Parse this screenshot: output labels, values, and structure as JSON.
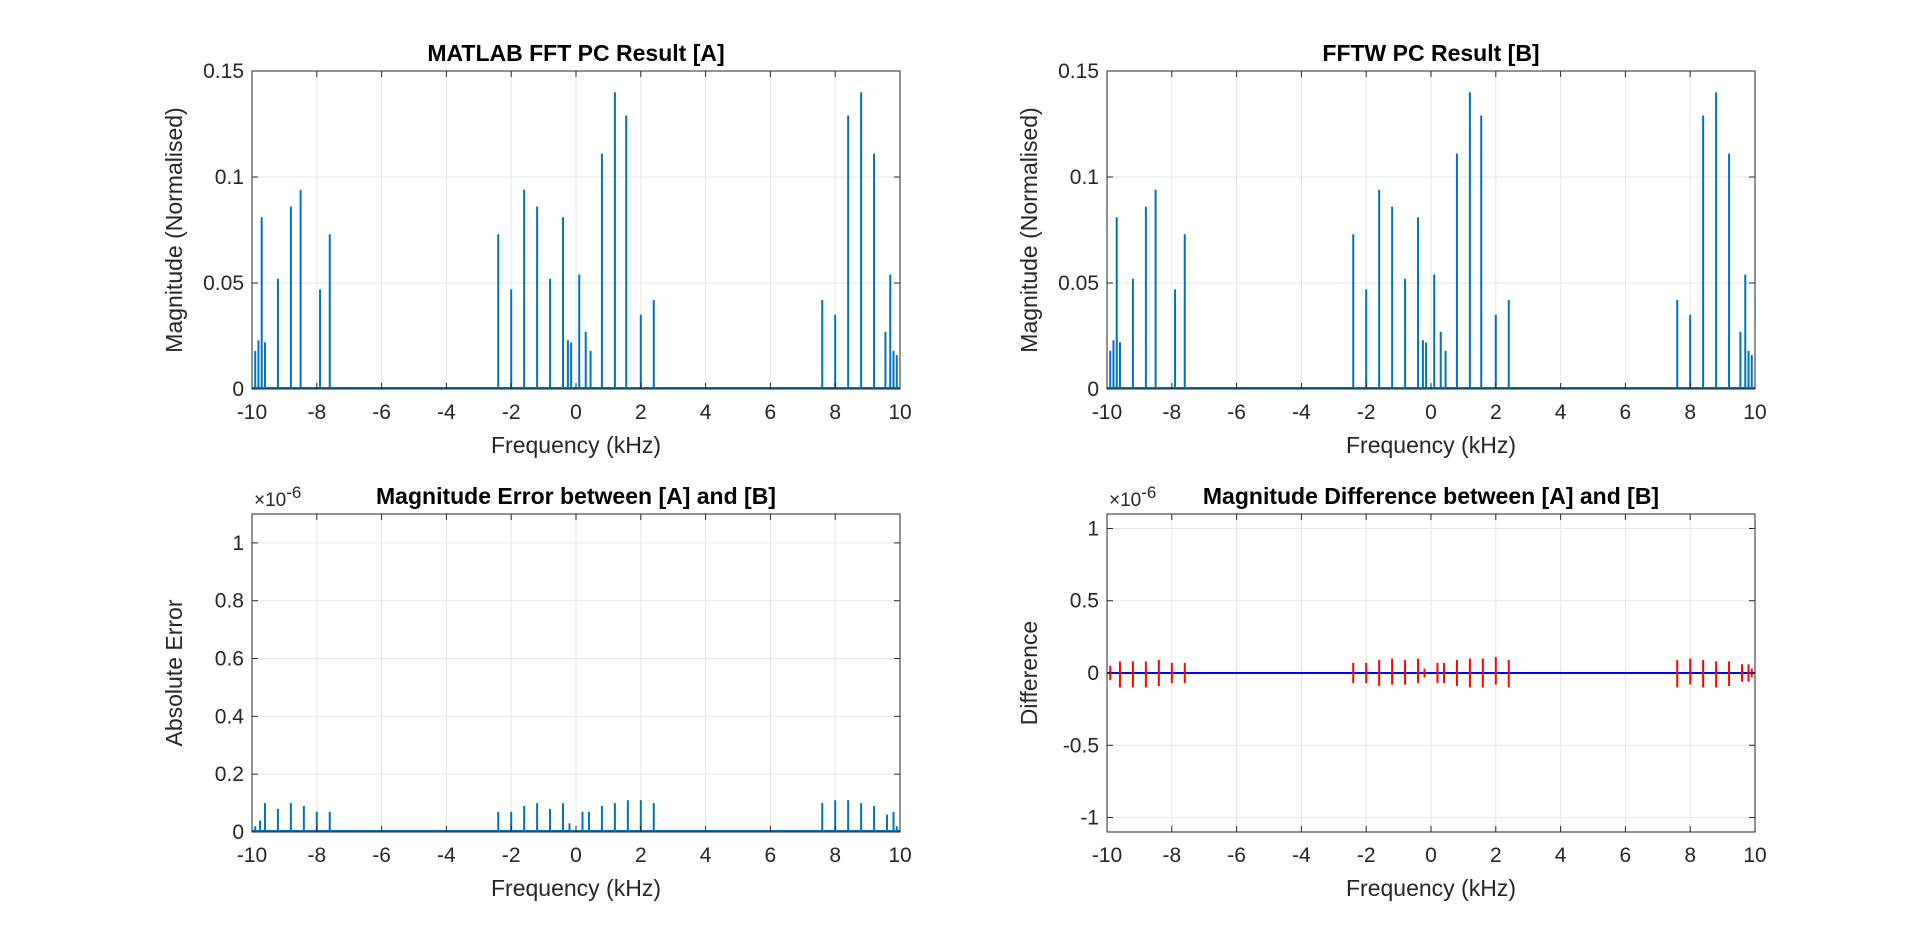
{
  "chart_data": [
    {
      "type": "line",
      "title": "MATLAB FFT PC Result [A]",
      "xlabel": "Frequency (kHz)",
      "ylabel": "Magnitude (Normalised)",
      "xlim": [
        -10,
        10
      ],
      "ylim": [
        0,
        0.15
      ],
      "xticks": [
        -10,
        -8,
        -6,
        -4,
        -2,
        0,
        2,
        4,
        6,
        8,
        10
      ],
      "yticks": [
        0,
        0.05,
        0.1,
        0.15
      ],
      "ytick_labels": [
        "0",
        "0.05",
        "0.1",
        "0.15"
      ],
      "exponent_label": "",
      "grid": true,
      "colors": {
        "series": "#0072BD"
      },
      "series": [
        {
          "style": "stem",
          "x": [
            -9.9,
            -9.8,
            -9.7,
            -9.6,
            -9.2,
            -8.8,
            -8.5,
            -7.9,
            -7.6,
            -2.4,
            -2.0,
            -1.6,
            -1.2,
            -0.8,
            -0.4,
            -0.25,
            -0.15,
            0.1,
            0.3,
            0.45,
            0.8,
            1.2,
            1.55,
            2.0,
            2.4,
            7.6,
            8.0,
            8.4,
            8.8,
            9.2,
            9.55,
            9.7,
            9.8,
            9.9
          ],
          "y": [
            0.018,
            0.023,
            0.081,
            0.022,
            0.052,
            0.086,
            0.094,
            0.047,
            0.073,
            0.073,
            0.047,
            0.094,
            0.086,
            0.052,
            0.081,
            0.023,
            0.022,
            0.054,
            0.027,
            0.018,
            0.111,
            0.14,
            0.129,
            0.035,
            0.042,
            0.042,
            0.035,
            0.129,
            0.14,
            0.111,
            0.027,
            0.054,
            0.018,
            0.016
          ]
        }
      ]
    },
    {
      "type": "line",
      "title": "FFTW PC Result [B]",
      "xlabel": "Frequency (kHz)",
      "ylabel": "Magnitude (Normalised)",
      "xlim": [
        -10,
        10
      ],
      "ylim": [
        0,
        0.15
      ],
      "xticks": [
        -10,
        -8,
        -6,
        -4,
        -2,
        0,
        2,
        4,
        6,
        8,
        10
      ],
      "yticks": [
        0,
        0.05,
        0.1,
        0.15
      ],
      "ytick_labels": [
        "0",
        "0.05",
        "0.1",
        "0.15"
      ],
      "exponent_label": "",
      "grid": true,
      "colors": {
        "series": "#0072BD"
      },
      "series": [
        {
          "style": "stem",
          "x": [
            -9.9,
            -9.8,
            -9.7,
            -9.6,
            -9.2,
            -8.8,
            -8.5,
            -7.9,
            -7.6,
            -2.4,
            -2.0,
            -1.6,
            -1.2,
            -0.8,
            -0.4,
            -0.25,
            -0.15,
            0.1,
            0.3,
            0.45,
            0.8,
            1.2,
            1.55,
            2.0,
            2.4,
            7.6,
            8.0,
            8.4,
            8.8,
            9.2,
            9.55,
            9.7,
            9.8,
            9.9
          ],
          "y": [
            0.018,
            0.023,
            0.081,
            0.022,
            0.052,
            0.086,
            0.094,
            0.047,
            0.073,
            0.073,
            0.047,
            0.094,
            0.086,
            0.052,
            0.081,
            0.023,
            0.022,
            0.054,
            0.027,
            0.018,
            0.111,
            0.14,
            0.129,
            0.035,
            0.042,
            0.042,
            0.035,
            0.129,
            0.14,
            0.111,
            0.027,
            0.054,
            0.018,
            0.016
          ]
        }
      ]
    },
    {
      "type": "line",
      "title": "Magnitude Error between [A] and [B]",
      "xlabel": "Frequency (kHz)",
      "ylabel": "Absolute Error",
      "xlim": [
        -10,
        10
      ],
      "ylim": [
        0,
        1.1
      ],
      "xticks": [
        -10,
        -8,
        -6,
        -4,
        -2,
        0,
        2,
        4,
        6,
        8,
        10
      ],
      "yticks": [
        0,
        0.2,
        0.4,
        0.6,
        0.8,
        1
      ],
      "ytick_labels": [
        "0",
        "0.2",
        "0.4",
        "0.6",
        "0.8",
        "1"
      ],
      "exponent_label": "×10",
      "exponent_power": "-6",
      "grid": true,
      "colors": {
        "series": "#0072BD"
      },
      "series": [
        {
          "style": "stem",
          "x": [
            -9.9,
            -9.75,
            -9.6,
            -9.2,
            -8.8,
            -8.4,
            -8.0,
            -7.6,
            -2.4,
            -2.0,
            -1.6,
            -1.2,
            -0.8,
            -0.4,
            -0.2,
            0.2,
            0.4,
            0.8,
            1.2,
            1.6,
            2.0,
            2.4,
            7.6,
            8.0,
            8.4,
            8.8,
            9.2,
            9.6,
            9.8,
            9.9
          ],
          "y": [
            0.02,
            0.04,
            0.1,
            0.08,
            0.1,
            0.09,
            0.07,
            0.07,
            0.07,
            0.07,
            0.09,
            0.1,
            0.08,
            0.1,
            0.03,
            0.07,
            0.07,
            0.09,
            0.1,
            0.11,
            0.11,
            0.1,
            0.1,
            0.11,
            0.11,
            0.1,
            0.09,
            0.06,
            0.07,
            0.02
          ]
        }
      ]
    },
    {
      "type": "line",
      "title": "Magnitude Difference between [A] and [B]",
      "xlabel": "Frequency (kHz)",
      "ylabel": "Difference",
      "xlim": [
        -10,
        10
      ],
      "ylim": [
        -1.1,
        1.1
      ],
      "xticks": [
        -10,
        -8,
        -6,
        -4,
        -2,
        0,
        2,
        4,
        6,
        8,
        10
      ],
      "yticks": [
        -1,
        -0.5,
        0,
        0.5,
        1
      ],
      "ytick_labels": [
        "-1",
        "-0.5",
        "0",
        "0.5",
        "1"
      ],
      "exponent_label": "×10",
      "exponent_power": "-6",
      "grid": true,
      "colors": {
        "series": "#FF0000",
        "baseline": "#0000FF"
      },
      "series": [
        {
          "style": "segments",
          "x": [
            -9.9,
            -9.6,
            -9.2,
            -8.8,
            -8.4,
            -8.0,
            -7.6,
            -2.4,
            -2.0,
            -1.6,
            -1.2,
            -0.8,
            -0.4,
            -0.2,
            0.2,
            0.4,
            0.8,
            1.2,
            1.6,
            2.0,
            2.4,
            7.6,
            8.0,
            8.4,
            8.8,
            9.2,
            9.6,
            9.8,
            9.9
          ],
          "ylo": [
            -0.05,
            -0.1,
            -0.1,
            -0.1,
            -0.09,
            -0.07,
            -0.07,
            -0.07,
            -0.07,
            -0.09,
            -0.08,
            -0.08,
            -0.07,
            -0.03,
            -0.07,
            -0.07,
            -0.09,
            -0.1,
            -0.1,
            -0.08,
            -0.1,
            -0.1,
            -0.08,
            -0.1,
            -0.1,
            -0.09,
            -0.06,
            -0.06,
            -0.03
          ],
          "yhi": [
            0.05,
            0.08,
            0.08,
            0.08,
            0.09,
            0.07,
            0.07,
            0.07,
            0.07,
            0.09,
            0.1,
            0.09,
            0.1,
            0.03,
            0.07,
            0.07,
            0.09,
            0.1,
            0.1,
            0.11,
            0.09,
            0.09,
            0.1,
            0.09,
            0.08,
            0.08,
            0.06,
            0.06,
            0.03
          ]
        }
      ]
    }
  ]
}
